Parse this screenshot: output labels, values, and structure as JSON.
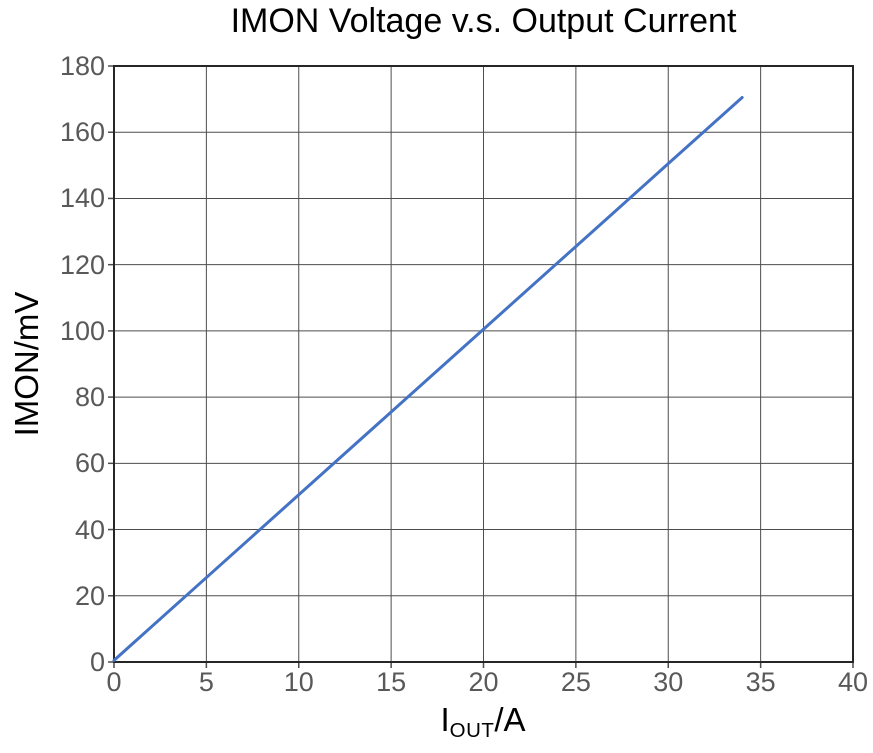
{
  "chart_data": {
    "type": "line",
    "title": "IMON Voltage v.s. Output Current",
    "xlabel": "I_OUT/A",
    "xlabel_parts": {
      "base": "I",
      "sub": "OUT",
      "suffix": "/A"
    },
    "ylabel": "IMON/mV",
    "xlim": [
      0,
      40
    ],
    "ylim": [
      0,
      180
    ],
    "xticks": [
      0,
      5,
      10,
      15,
      20,
      25,
      30,
      35,
      40
    ],
    "yticks": [
      0,
      20,
      40,
      60,
      80,
      100,
      120,
      140,
      160,
      180
    ],
    "grid": true,
    "legend": "none",
    "series": [
      {
        "name": "IMON voltage",
        "color": "#4472C4",
        "points": [
          [
            0,
            0.5
          ],
          [
            5,
            25.5
          ],
          [
            10,
            50.5
          ],
          [
            15,
            75.5
          ],
          [
            20,
            100.5
          ],
          [
            25,
            125.5
          ],
          [
            30,
            150.5
          ],
          [
            34,
            170.5
          ]
        ]
      }
    ]
  },
  "colors": {
    "line": "#4472C4",
    "grid": "#4d4d4d",
    "axis_border": "#262626",
    "tick_label": "#595959",
    "text": "#000000",
    "background": "#ffffff"
  }
}
